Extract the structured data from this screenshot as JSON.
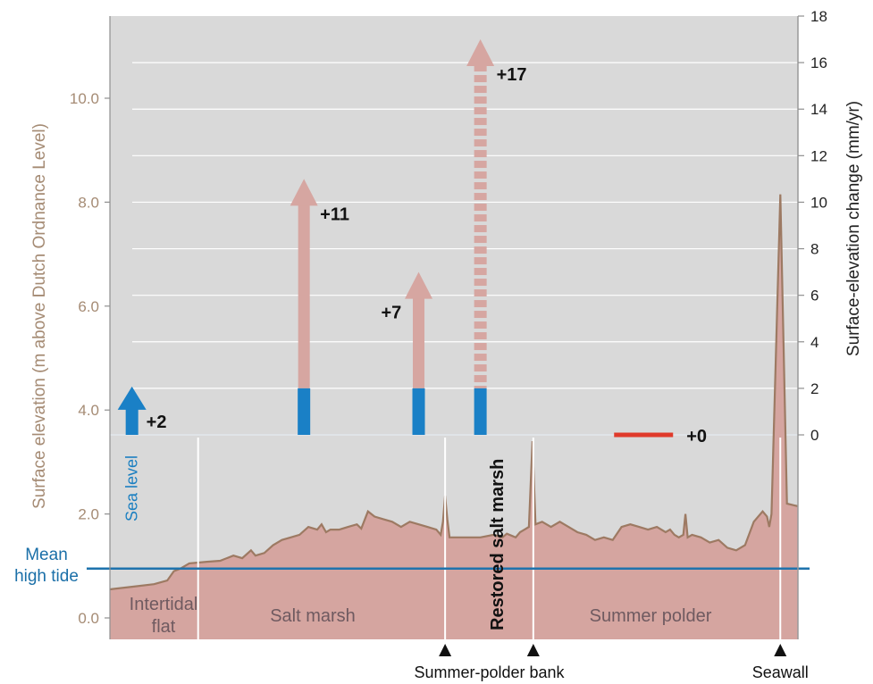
{
  "chart_data": {
    "type": "area",
    "left_axis": {
      "label": "Surface elevation (m above Dutch Ordnance Level)",
      "ticks": [
        "0.0",
        "2.0",
        "4.0",
        "6.0",
        "8.0",
        "10.0"
      ],
      "ylim": [
        -0.4,
        11.6
      ]
    },
    "right_axis": {
      "label": "Surface-elevation change (mm/yr)",
      "ticks": [
        "0",
        "2",
        "4",
        "6",
        "8",
        "10",
        "12",
        "14",
        "16",
        "18"
      ],
      "ylim": [
        0,
        18
      ]
    },
    "mean_high_tide": {
      "label": "Mean\nhigh tide",
      "value": 0.95
    },
    "profile": [
      [
        0,
        0.55
      ],
      [
        5,
        0.6
      ],
      [
        10,
        0.65
      ],
      [
        13,
        0.72
      ],
      [
        14.5,
        0.9
      ],
      [
        16,
        0.95
      ],
      [
        18,
        1.05
      ],
      [
        22,
        1.08
      ],
      [
        25,
        1.1
      ],
      [
        28,
        1.2
      ],
      [
        30,
        1.15
      ],
      [
        32,
        1.3
      ],
      [
        33,
        1.2
      ],
      [
        35,
        1.25
      ],
      [
        37,
        1.4
      ],
      [
        39,
        1.5
      ],
      [
        41,
        1.55
      ],
      [
        43,
        1.6
      ],
      [
        45,
        1.75
      ],
      [
        47,
        1.7
      ],
      [
        48,
        1.8
      ],
      [
        49,
        1.65
      ],
      [
        50,
        1.7
      ],
      [
        52,
        1.7
      ],
      [
        54,
        1.75
      ],
      [
        56,
        1.8
      ],
      [
        57,
        1.72
      ],
      [
        58.5,
        2.05
      ],
      [
        60,
        1.95
      ],
      [
        62,
        1.9
      ],
      [
        64,
        1.85
      ],
      [
        66,
        1.75
      ],
      [
        68,
        1.85
      ],
      [
        70,
        1.8
      ],
      [
        72,
        1.75
      ],
      [
        74,
        1.7
      ],
      [
        75,
        1.6
      ],
      [
        75.5,
        1.85
      ],
      [
        76,
        2.35
      ],
      [
        76.5,
        1.9
      ],
      [
        77,
        1.55
      ],
      [
        80,
        1.55
      ],
      [
        84,
        1.55
      ],
      [
        87,
        1.6
      ],
      [
        89,
        1.55
      ],
      [
        90,
        1.62
      ],
      [
        92,
        1.55
      ],
      [
        93,
        1.65
      ],
      [
        94,
        1.7
      ],
      [
        95,
        1.75
      ],
      [
        95.8,
        3.4
      ],
      [
        96.5,
        1.8
      ],
      [
        98,
        1.85
      ],
      [
        100,
        1.75
      ],
      [
        102,
        1.85
      ],
      [
        104,
        1.75
      ],
      [
        106,
        1.65
      ],
      [
        108,
        1.6
      ],
      [
        110,
        1.5
      ],
      [
        112,
        1.55
      ],
      [
        114,
        1.5
      ],
      [
        116,
        1.75
      ],
      [
        118,
        1.8
      ],
      [
        120,
        1.75
      ],
      [
        122,
        1.7
      ],
      [
        124,
        1.75
      ],
      [
        126,
        1.65
      ],
      [
        127,
        1.7
      ],
      [
        128,
        1.6
      ],
      [
        129,
        1.55
      ],
      [
        130,
        1.6
      ],
      [
        130.5,
        2.0
      ],
      [
        131,
        1.55
      ],
      [
        132,
        1.6
      ],
      [
        134,
        1.55
      ],
      [
        136,
        1.45
      ],
      [
        138,
        1.5
      ],
      [
        140,
        1.35
      ],
      [
        142,
        1.3
      ],
      [
        144,
        1.4
      ],
      [
        146,
        1.85
      ],
      [
        148,
        2.05
      ],
      [
        149,
        1.95
      ],
      [
        149.5,
        1.75
      ],
      [
        150,
        2.0
      ],
      [
        152,
        8.15
      ],
      [
        153.5,
        2.2
      ],
      [
        156,
        2.15
      ]
    ],
    "zones": [
      {
        "label": "Intertidal\nflat",
        "x": [
          0,
          20
        ]
      },
      {
        "label": "Salt marsh",
        "x": [
          20,
          77
        ]
      },
      {
        "label": "Restored salt marsh",
        "x": [
          77,
          96
        ]
      },
      {
        "label": "Summer polder",
        "x": [
          96,
          156
        ]
      }
    ],
    "structures": [
      {
        "label": "Summer-polder bank",
        "x": [
          76,
          96
        ]
      },
      {
        "label": "Seawall",
        "x": [
          152
        ]
      }
    ],
    "rates": [
      {
        "label": "+2",
        "value": 2,
        "x": 5,
        "type": "sea-level"
      },
      {
        "label": "+11",
        "value": 11,
        "x": 44
      },
      {
        "label": "+7",
        "value": 7,
        "x": 70
      },
      {
        "label": "+17",
        "value": 17,
        "x": 84,
        "dashed": true
      },
      {
        "label": "+0",
        "value": 0,
        "x": 121
      }
    ],
    "sea_level_label": "Sea level",
    "colors": {
      "plot_bg": "#d9d9d9",
      "profile_fill": "#d5a5a0",
      "profile_line": "#9d7a63",
      "arrow": "#d6a6a1",
      "blue": "#1a80c6",
      "red": "#e03a2b",
      "mht_line": "#1e73ad"
    }
  }
}
